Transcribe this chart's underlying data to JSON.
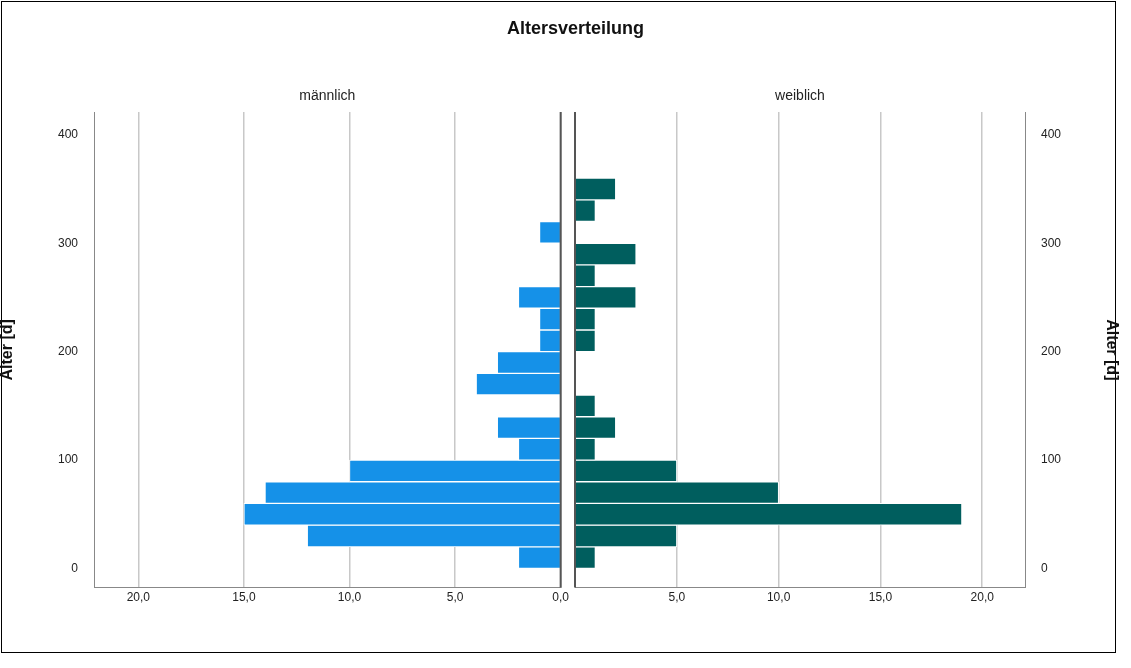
{
  "chart_data": [
    {
      "type": "histogram",
      "orientation": "horizontal",
      "title": "Altersverteilung",
      "subtitle": "männlich",
      "ylabel": "Alter [d]",
      "color": "#1591e8",
      "bins": [
        0,
        20,
        40,
        60,
        80,
        100,
        120,
        140,
        160,
        180,
        200,
        220,
        240,
        260,
        280,
        300,
        320,
        340,
        360
      ],
      "values": [
        2,
        12,
        15,
        14,
        10,
        2,
        3,
        0,
        4,
        3,
        1,
        1,
        2,
        0,
        0,
        1,
        0,
        0
      ],
      "xlim": [
        22.1,
        0
      ],
      "xticks": [
        {
          "value": 20,
          "label": "20,0"
        },
        {
          "value": 15,
          "label": "15,0"
        },
        {
          "value": 10,
          "label": "10,0"
        },
        {
          "value": 5,
          "label": "5,0"
        },
        {
          "value": 0,
          "label": "0,0"
        }
      ],
      "ylim": [
        -17.6,
        421
      ],
      "yticks": [
        0,
        100,
        200,
        300,
        400
      ],
      "grid": "x"
    },
    {
      "type": "histogram",
      "orientation": "horizontal",
      "subtitle": "weiblich",
      "ylabel": "Alter [d]",
      "color": "#005e5e",
      "bins": [
        0,
        20,
        40,
        60,
        80,
        100,
        120,
        140,
        160,
        180,
        200,
        220,
        240,
        260,
        280,
        300,
        320,
        340,
        360
      ],
      "values": [
        1,
        5,
        19,
        10,
        5,
        1,
        2,
        1,
        0,
        0,
        1,
        1,
        3,
        1,
        3,
        0,
        1,
        2
      ],
      "xlim": [
        0,
        22.1
      ],
      "xticks": [
        {
          "value": 0,
          "label": null
        },
        {
          "value": 5,
          "label": "5,0"
        },
        {
          "value": 10,
          "label": "10,0"
        },
        {
          "value": 15,
          "label": "15,0"
        },
        {
          "value": 20,
          "label": "20,0"
        }
      ],
      "ylim": [
        -17.6,
        421
      ],
      "yticks": [
        0,
        100,
        200,
        300,
        400
      ],
      "grid": "x"
    }
  ]
}
